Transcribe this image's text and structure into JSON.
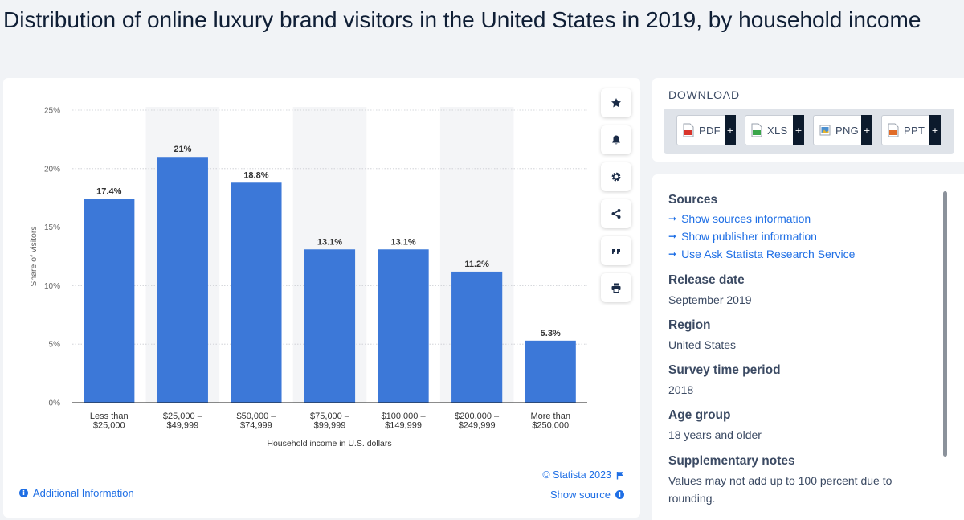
{
  "page_title": "Distribution of online luxury brand visitors in the United States in 2019, by household income",
  "chart_data": {
    "type": "bar",
    "categories": [
      [
        "Less than",
        "$25,000"
      ],
      [
        "$25,000 –",
        "$49,999"
      ],
      [
        "$50,000 –",
        "$74,999"
      ],
      [
        "$75,000 –",
        "$99,999"
      ],
      [
        "$100,000 –",
        "$149,999"
      ],
      [
        "$200,000 –",
        "$249,999"
      ],
      [
        "More than",
        "$250,000"
      ]
    ],
    "values": [
      17.4,
      21,
      18.8,
      13.1,
      13.1,
      11.2,
      5.3
    ],
    "value_labels": [
      "17.4%",
      "21%",
      "18.8%",
      "13.1%",
      "13.1%",
      "11.2%",
      "5.3%"
    ],
    "xlabel": "Household income in U.S. dollars",
    "ylabel": "Share of visitors",
    "ylim": [
      0,
      25
    ],
    "yticks": [
      0,
      5,
      10,
      15,
      20,
      25
    ],
    "ytick_labels": [
      "0%",
      "5%",
      "10%",
      "15%",
      "20%",
      "25%"
    ],
    "bar_color": "#3c78d8",
    "grid": true
  },
  "chart_footer": {
    "additional_info": "Additional Information",
    "copyright": "© Statista 2023",
    "show_source": "Show source"
  },
  "actions": [
    "star-icon",
    "bell-icon",
    "gear-icon",
    "share-icon",
    "quote-icon",
    "print-icon"
  ],
  "download": {
    "title": "DOWNLOAD",
    "buttons": [
      {
        "label": "PDF",
        "color": "#d9342b"
      },
      {
        "label": "XLS",
        "color": "#3aa64a"
      },
      {
        "label": "PNG",
        "color": "#4a8fd0"
      },
      {
        "label": "PPT",
        "color": "#e06b27"
      }
    ],
    "plus": "+"
  },
  "info": {
    "sources_heading": "Sources",
    "source_links": [
      "Show sources information",
      "Show publisher information",
      "Use Ask Statista Research Service"
    ],
    "release_heading": "Release date",
    "release_value": "September 2019",
    "region_heading": "Region",
    "region_value": "United States",
    "survey_heading": "Survey time period",
    "survey_value": "2018",
    "age_heading": "Age group",
    "age_value": "18 years and older",
    "notes_heading": "Supplementary notes",
    "notes_value": "Values may not add up to 100 percent due to rounding."
  },
  "colors": {
    "accent": "#1f6fe5",
    "bar": "#3c78d8",
    "dark": "#0c1a2c"
  }
}
